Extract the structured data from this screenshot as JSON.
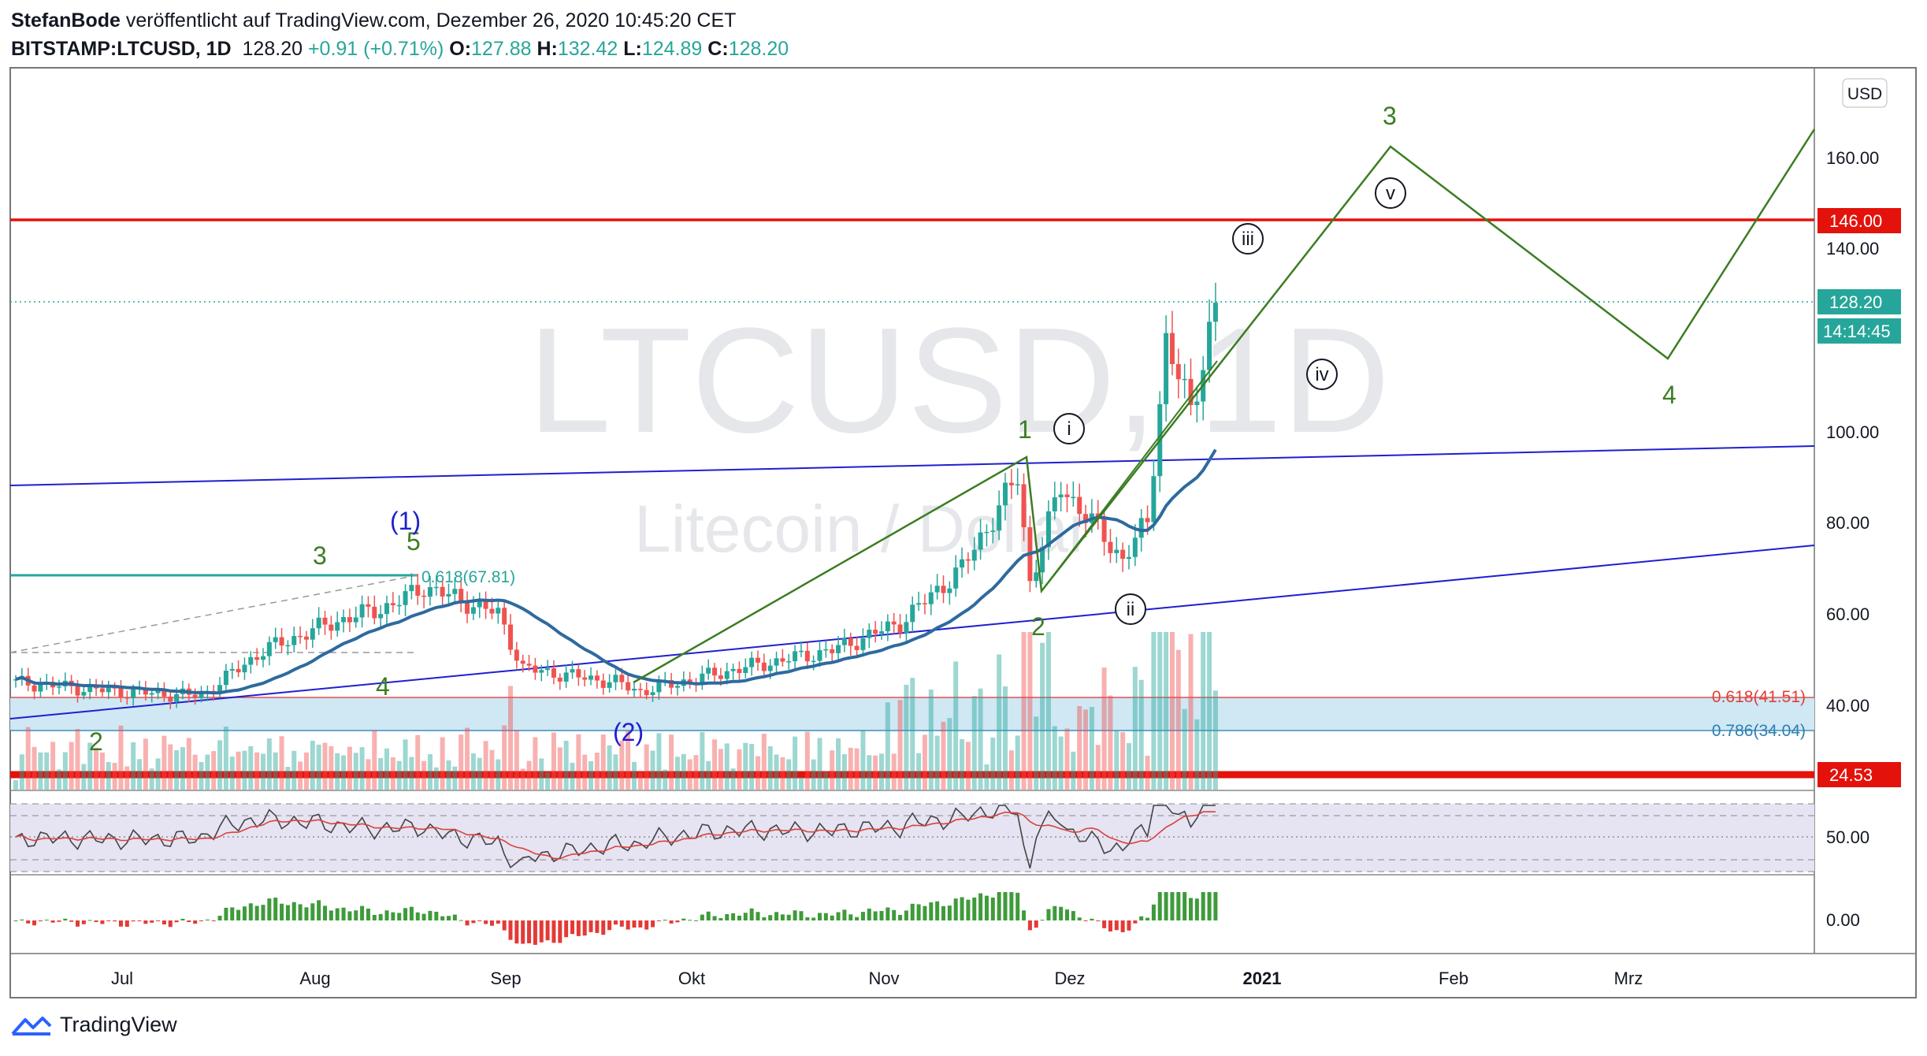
{
  "header": {
    "author": "StefanBode",
    "published": "veröffentlicht auf TradingView.com, Dezember 26, 2020 10:45:20 CET",
    "symbol": "BITSTAMP:LTCUSD, 1D",
    "price": "128.20",
    "change": "+0.91 (+0.71%)",
    "open_label": "O:",
    "open": "127.88",
    "high_label": "H:",
    "high": "132.42",
    "low_label": "L:",
    "low": "124.89",
    "close_label": "C:",
    "close": "128.20"
  },
  "watermark": {
    "symbol": "LTCUSD, 1D",
    "name": "Litecoin / Dollar"
  },
  "footer": {
    "brand": "TradingView"
  },
  "colors": {
    "up": "#26a69a",
    "down": "#ef5350",
    "ma": "#2e6a9e",
    "wave": "#3b7d23",
    "channel": "#1f1fd0",
    "hline": "#e3120b"
  },
  "chart_data": {
    "type": "candlestick",
    "currency_label": "USD",
    "x_labels": [
      "Jul",
      "Aug",
      "Sep",
      "Okt",
      "Nov",
      "Dez",
      "2021",
      "Feb",
      "Mrz"
    ],
    "y_ticks": [
      "160.00",
      "140.00",
      "100.00",
      "80.00",
      "60.00",
      "40.00"
    ],
    "ylim": [
      24,
      170
    ],
    "price_tags": {
      "level_146": "146.00",
      "last": "128.20",
      "countdown": "14:14:45",
      "level_24": "24.53"
    },
    "horizontal_levels": [
      146.0,
      24.53,
      41.51,
      34.04,
      67.81
    ],
    "fib_labels": {
      "top": "0.618(67.81)",
      "mid": "0.618(41.51)",
      "low": "0.786(34.04)"
    },
    "series_close_samples": [
      [
        "Jun 15",
        45
      ],
      [
        "Jul 1",
        43
      ],
      [
        "Jul 15",
        42
      ],
      [
        "Jul 25",
        52
      ],
      [
        "Aug 5",
        58
      ],
      [
        "Aug 15",
        62
      ],
      [
        "Aug 20",
        66
      ],
      [
        "Sep 1",
        60
      ],
      [
        "Sep 5",
        48
      ],
      [
        "Sep 20",
        45
      ],
      [
        "Sep 24",
        43
      ],
      [
        "Okt 10",
        48
      ],
      [
        "Okt 25",
        52
      ],
      [
        "Nov 5",
        58
      ],
      [
        "Nov 15",
        70
      ],
      [
        "Nov 24",
        90
      ],
      [
        "Nov 26",
        67
      ],
      [
        "Dez 1",
        88
      ],
      [
        "Dez 11",
        72
      ],
      [
        "Dez 15",
        80
      ],
      [
        "Dez 18",
        120
      ],
      [
        "Dez 22",
        104
      ],
      [
        "Dez 26",
        128.2
      ]
    ],
    "wave_labels": {
      "green": [
        "2",
        "3",
        "4",
        "5",
        "1",
        "2",
        "3",
        "4"
      ],
      "blue": [
        "(1)",
        "(2)"
      ],
      "circled": [
        "i",
        "ii",
        "iii",
        "iv",
        "v"
      ]
    },
    "rsi": {
      "tick": "50.00"
    },
    "histogram": {
      "tick": "0.00"
    }
  }
}
